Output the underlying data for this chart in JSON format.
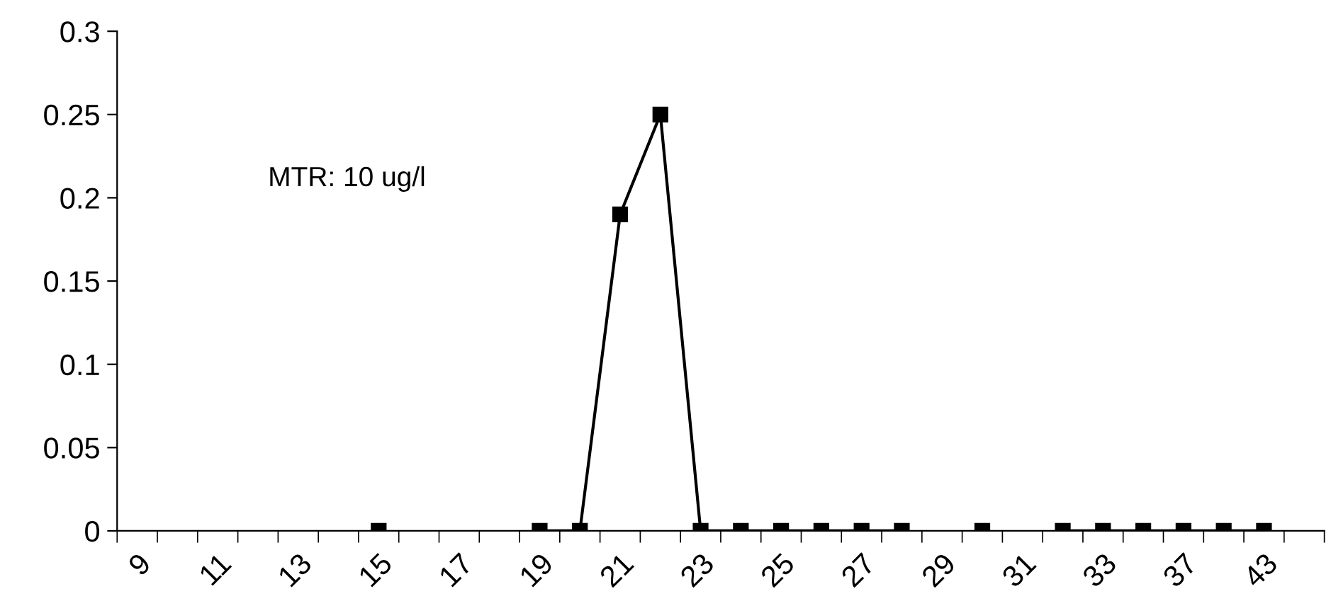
{
  "chart_data": {
    "type": "line",
    "categories": [
      "9",
      null,
      "11",
      null,
      "13",
      null,
      "15",
      null,
      "17",
      null,
      "19",
      null,
      "21",
      null,
      "23",
      null,
      "25",
      null,
      "27",
      null,
      "29",
      null,
      "31",
      null,
      "33",
      null,
      "37",
      null,
      "43",
      null
    ],
    "series": [
      {
        "color": "#000000",
        "values": [
          null,
          null,
          null,
          null,
          null,
          null,
          0,
          null,
          null,
          null,
          0,
          0,
          0.19,
          0.25,
          0,
          0,
          0,
          0,
          0,
          0,
          null,
          0,
          null,
          0,
          0,
          0,
          0,
          0,
          0,
          null
        ]
      }
    ],
    "ylim": [
      0,
      0.3
    ],
    "yticks": [
      0,
      0.05,
      0.1,
      0.15,
      0.2,
      0.25,
      0.3
    ],
    "marker": "square",
    "line_style": "solid",
    "grid": false,
    "legend": false,
    "annotations": [
      "MTR: 10 ug/l"
    ]
  }
}
